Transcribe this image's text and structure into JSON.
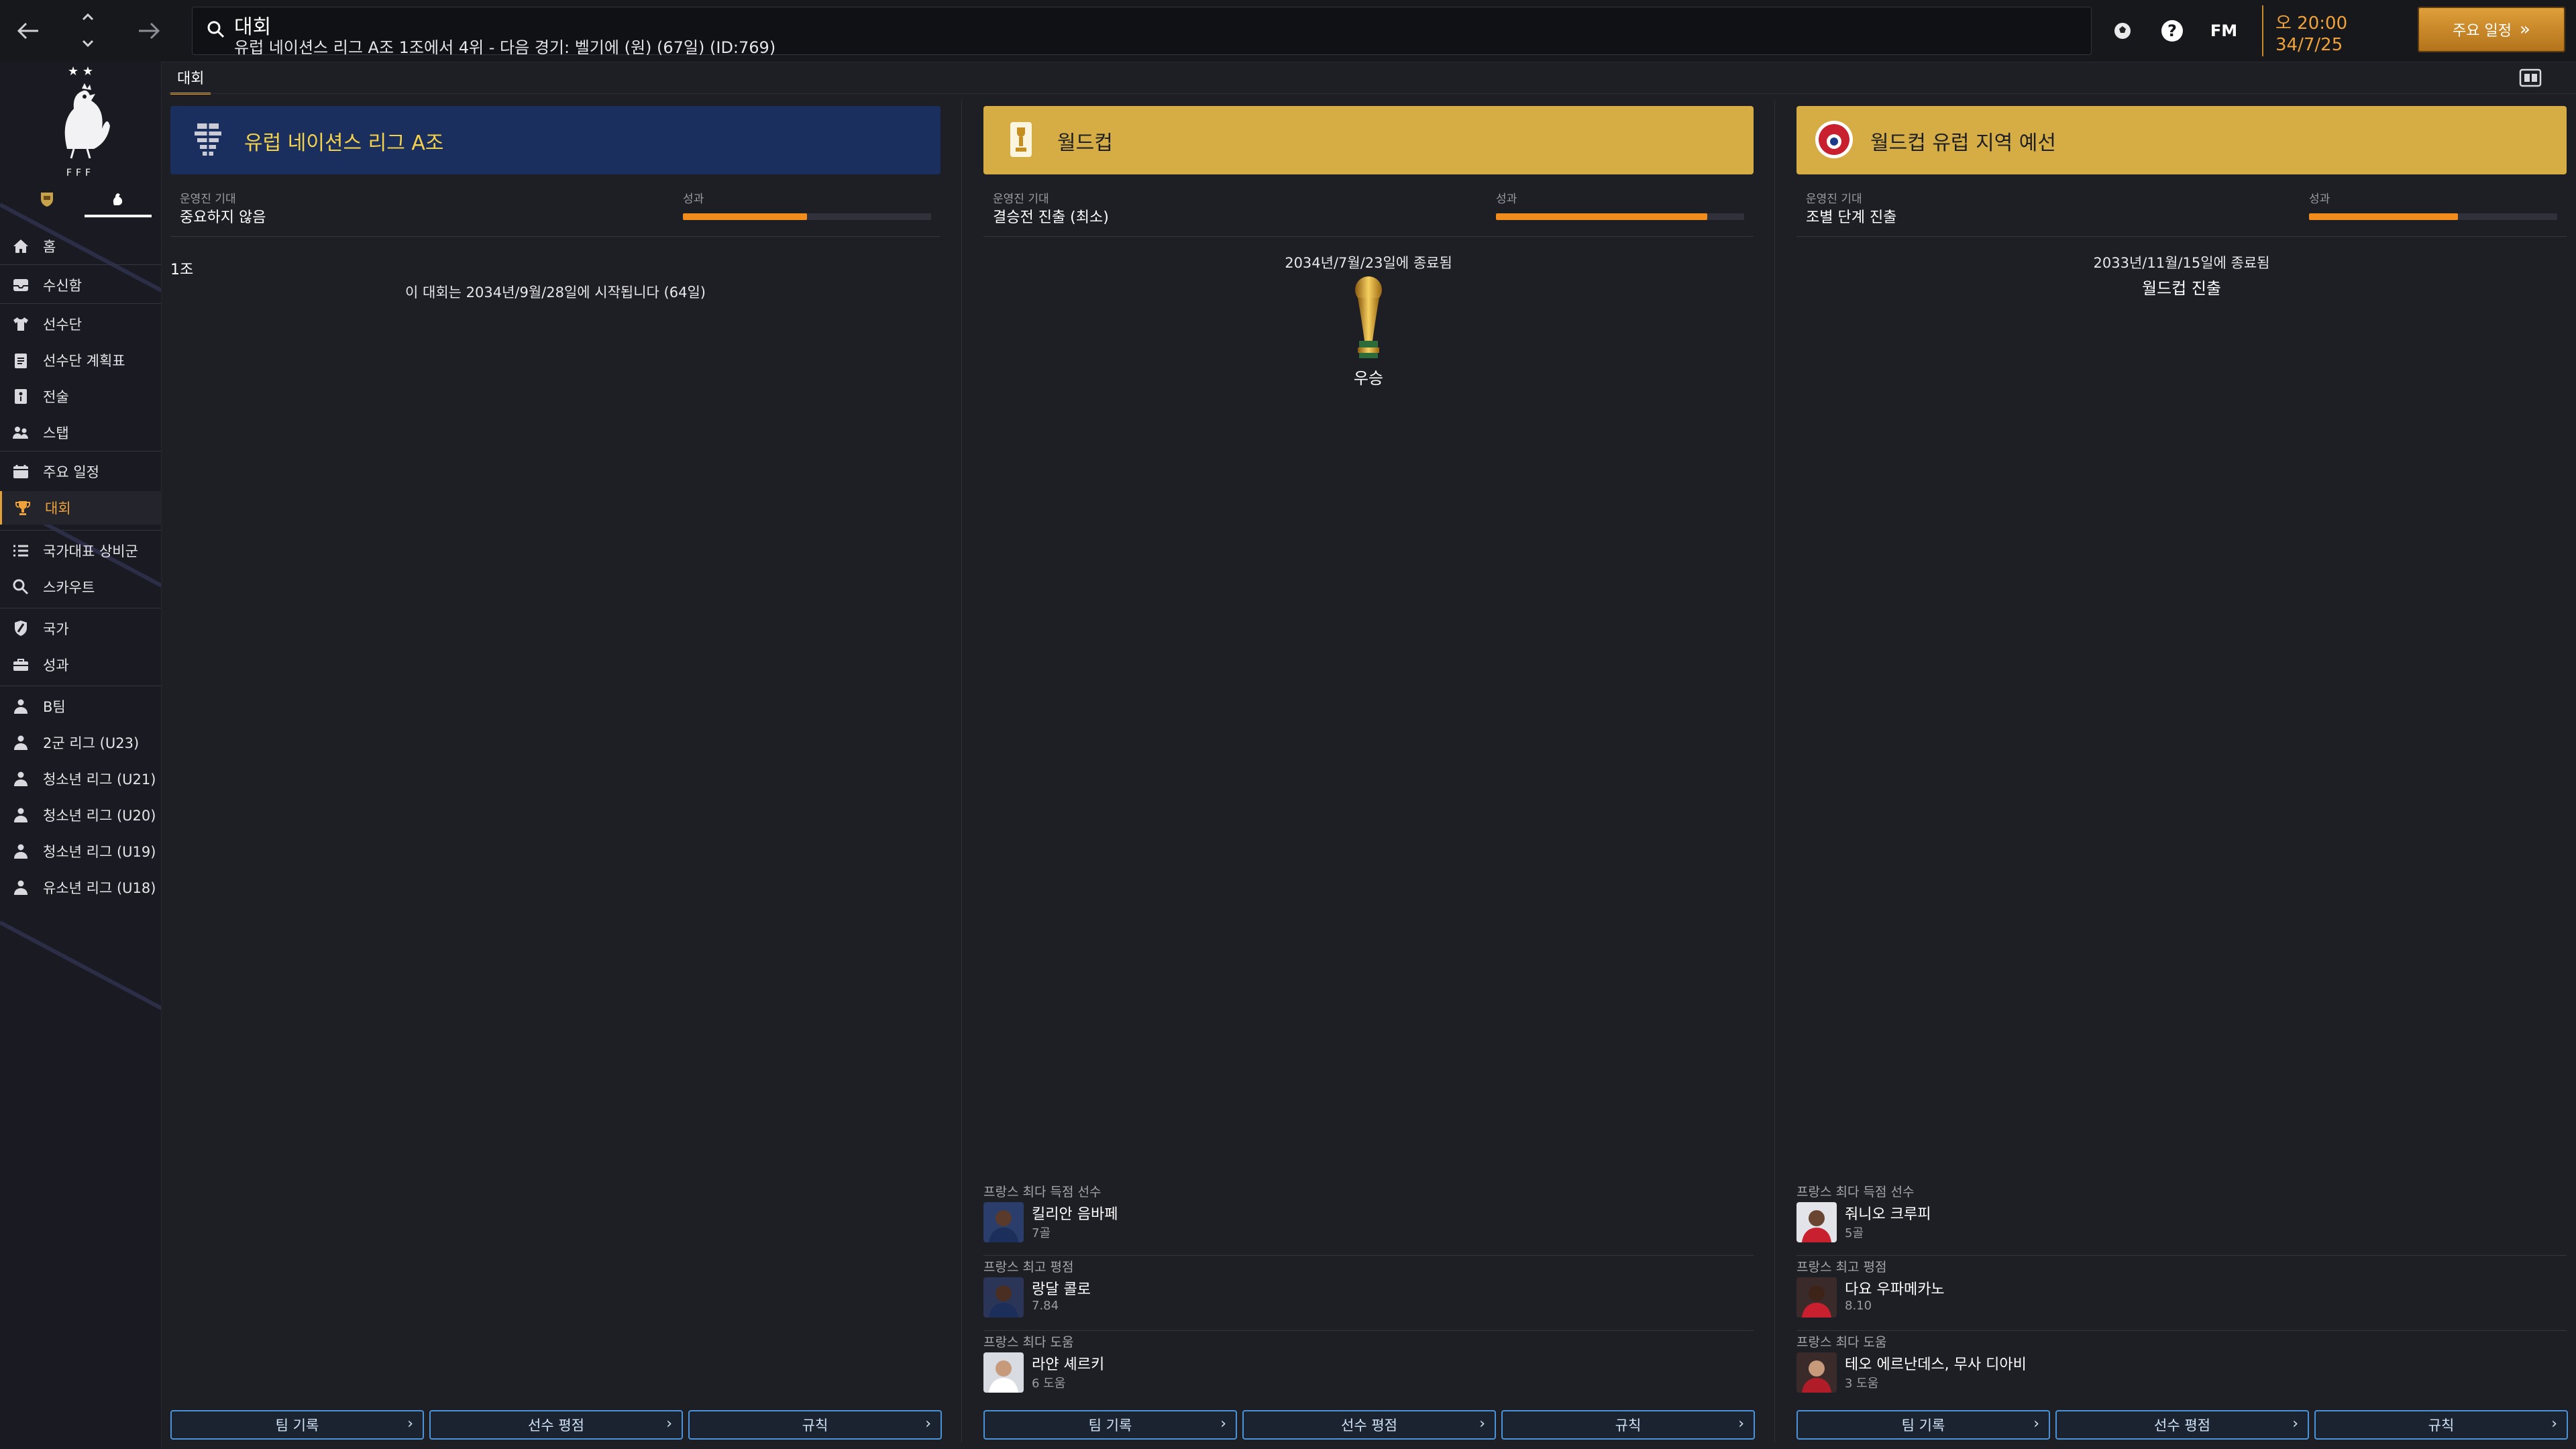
{
  "topbar": {
    "search_title": "대회",
    "search_subtitle": "유럽 네이션스 리그 A조 1조에서 4위 - 다음 경기: 벨기에 (원) (67일) (ID:769)",
    "help_label": "?",
    "fm_label": "FM",
    "time": "오 20:00",
    "date": "34/7/25",
    "continue_label": "주요 일정"
  },
  "sidebar": {
    "items": [
      {
        "label": "홈",
        "icon": "home-icon"
      },
      {
        "label": "수신함",
        "icon": "inbox-icon"
      },
      {
        "label": "선수단",
        "icon": "shirt-icon"
      },
      {
        "label": "선수단 계획표",
        "icon": "clipboard-icon"
      },
      {
        "label": "전술",
        "icon": "tactics-icon"
      },
      {
        "label": "스탭",
        "icon": "staff-icon"
      },
      {
        "label": "주요 일정",
        "icon": "calendar-icon"
      },
      {
        "label": "대회",
        "icon": "trophy-icon"
      },
      {
        "label": "국가대표 상비군",
        "icon": "list-icon"
      },
      {
        "label": "스카우트",
        "icon": "scout-icon"
      },
      {
        "label": "국가",
        "icon": "shield-icon"
      },
      {
        "label": "성과",
        "icon": "briefcase-icon"
      },
      {
        "label": "B팀",
        "icon": "team-icon"
      },
      {
        "label": "2군 리그 (U23)",
        "icon": "team-icon"
      },
      {
        "label": "청소년 리그 (U21)",
        "icon": "team-icon"
      },
      {
        "label": "청소년 리그 (U20)",
        "icon": "team-icon"
      },
      {
        "label": "청소년 리그 (U19)",
        "icon": "team-icon"
      },
      {
        "label": "유소년 리그 (U18)",
        "icon": "team-icon"
      }
    ],
    "active": "대회"
  },
  "page_tab": "대회",
  "panels": [
    {
      "title": "유럽 네이션스 리그 A조",
      "header_color": "#1b2f5e",
      "expectation_label": "운영진 기대",
      "expectation_value": "중요하지 않음",
      "performance_label": "성과",
      "performance_fraction": 0.5,
      "group_label": "1조",
      "info_text": "이 대회는 2034년/9월/28일에 시작됩니다 (64일)",
      "buttons": [
        "팀 기록",
        "선수 평점",
        "규칙"
      ]
    },
    {
      "title": "월드컵",
      "header_color": "#d6ad45",
      "expectation_label": "운영진 기대",
      "expectation_value": "결승전 진출 (최소)",
      "performance_label": "성과",
      "performance_fraction": 0.85,
      "end_text": "2034년/7월/23일에 종료됨",
      "result": "우승",
      "stats": [
        {
          "title": "프랑스 최다 득점 선수",
          "name": "킬리안 음바페",
          "value": "7골"
        },
        {
          "title": "프랑스 최고 평점",
          "name": "랑달 콜로",
          "value": "7.84"
        },
        {
          "title": "프랑스 최다 도움",
          "name": "라얀 셰르키",
          "value": "6 도움"
        }
      ],
      "buttons": [
        "팀 기록",
        "선수 평점",
        "규칙"
      ]
    },
    {
      "title": "월드컵 유럽 지역 예선",
      "header_color": "#d6ad45",
      "expectation_label": "운영진 기대",
      "expectation_value": "조별 단계 진출",
      "performance_label": "성과",
      "performance_fraction": 0.6,
      "end_text": "2033년/11월/15일에 종료됨",
      "result": "월드컵 진출",
      "stats": [
        {
          "title": "프랑스 최다 득점 선수",
          "name": "줘니오 크루피",
          "value": "5골"
        },
        {
          "title": "프랑스 최고 평점",
          "name": "다요 우파메카노",
          "value": "8.10"
        },
        {
          "title": "프랑스 최다 도움",
          "name": "테오 에르난데스, 무사 디아비",
          "value": "3 도움"
        }
      ],
      "buttons": [
        "팀 기록",
        "선수 평점",
        "규칙"
      ]
    }
  ]
}
